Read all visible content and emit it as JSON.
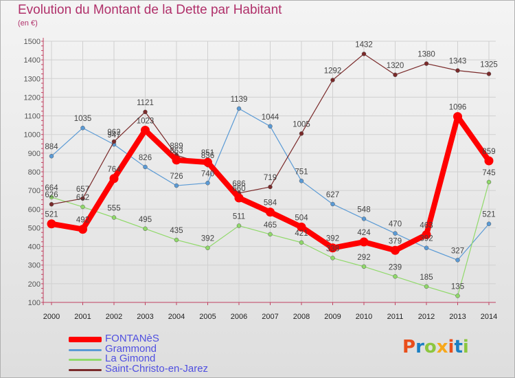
{
  "title": "Evolution du Montant de la Dette par Habitant",
  "subtitle": "(en €)",
  "logo": {
    "text": "Proxiti",
    "colors": [
      "#e94e1b",
      "#1a7fc3",
      "#8cc63f",
      "#f7a81b",
      "#e94e1b",
      "#1a7fc3",
      "#8cc63f"
    ]
  },
  "chart_data": {
    "type": "line",
    "title": "Evolution du Montant de la Dette par Habitant",
    "subtitle": "(en €)",
    "xlabel": "",
    "ylabel": "",
    "x": [
      "2000",
      "2001",
      "2002",
      "2003",
      "2004",
      "2005",
      "2006",
      "2007",
      "2008",
      "2009",
      "2010",
      "2011",
      "2012",
      "2013",
      "2014"
    ],
    "yticks": [
      100,
      200,
      300,
      400,
      500,
      600,
      700,
      800,
      900,
      1000,
      1100,
      1200,
      1300,
      1400,
      1500
    ],
    "ylim": [
      100,
      1500
    ],
    "grid": true,
    "legend_position": "bottom-left",
    "series": [
      {
        "name": "FONTANèS",
        "color": "#ff0000",
        "values": [
          521,
          492,
          764,
          1023,
          863,
          851,
          660,
          584,
          504,
          392,
          424,
          379,
          463,
          1096,
          859
        ],
        "labels": [
          "521",
          "492",
          "764",
          "1023",
          "863",
          "851",
          "660",
          "584",
          "504",
          "392",
          "424",
          "379",
          "463",
          "1096",
          "859"
        ]
      },
      {
        "name": "Grammond",
        "color": "#5a9ad5",
        "values": [
          884,
          1035,
          947,
          826,
          726,
          740,
          1139,
          1044,
          751,
          627,
          548,
          470,
          392,
          327,
          521
        ],
        "labels": [
          "884",
          "1035",
          "947",
          "826",
          "726",
          "740",
          "1139",
          "1044",
          "751",
          "627",
          "548",
          "470",
          "392",
          "327",
          "521"
        ]
      },
      {
        "name": "La Gimond",
        "color": "#90d96a",
        "values": [
          664,
          612,
          555,
          495,
          435,
          392,
          511,
          465,
          421,
          338,
          292,
          239,
          185,
          135,
          745
        ],
        "labels": [
          "664",
          "612",
          "555",
          "495",
          "435",
          "392",
          "511",
          "465",
          "421",
          "338",
          "292",
          "239",
          "185",
          "135",
          "745"
        ]
      },
      {
        "name": "Saint-Christo-en-Jarez",
        "color": "#7a2a2a",
        "values": [
          626,
          657,
          962,
          1121,
          889,
          836,
          686,
          719,
          1005,
          1292,
          1432,
          1320,
          1380,
          1343,
          1325
        ],
        "labels": [
          "626",
          "657",
          "962",
          "1121",
          "889",
          "836",
          "686",
          "719",
          "1005",
          "1292",
          "1432",
          "1320",
          "1380",
          "1343",
          "1325"
        ]
      }
    ]
  }
}
